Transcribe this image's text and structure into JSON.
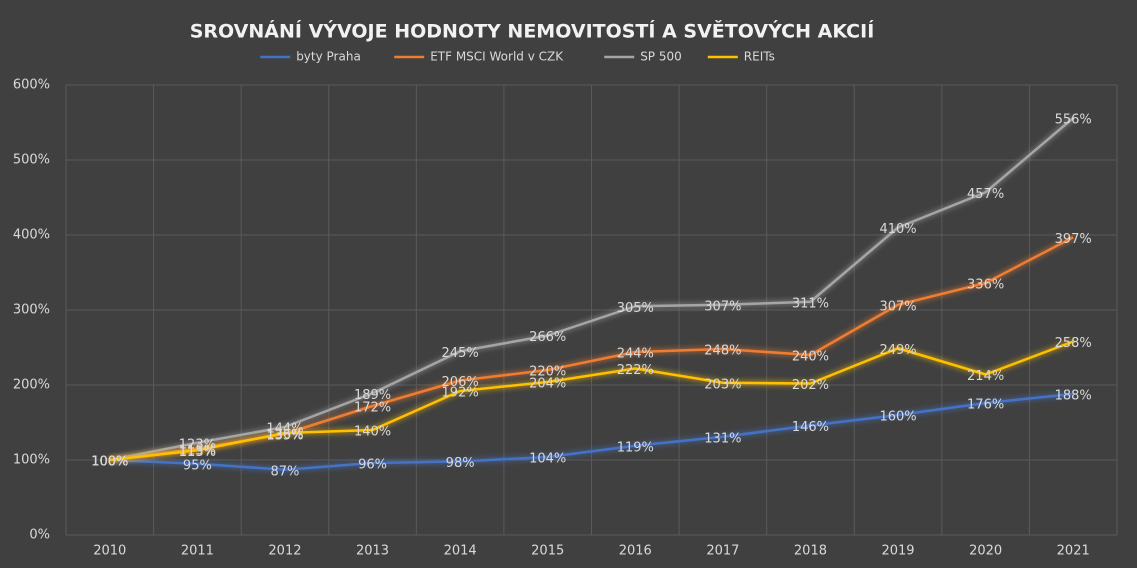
{
  "chart_data": {
    "type": "line",
    "title": "SROVNÁNÍ VÝVOJE HODNOTY NEMOVITOSTÍ A SVĚTOVÝCH AKCIÍ",
    "categories": [
      "2010",
      "2011",
      "2012",
      "2013",
      "2014",
      "2015",
      "2016",
      "2017",
      "2018",
      "2019",
      "2020",
      "2021"
    ],
    "series": [
      {
        "name": "byty Praha",
        "color": "#4472c4",
        "values": [
          100,
          95,
          87,
          96,
          98,
          104,
          119,
          131,
          146,
          160,
          176,
          188
        ],
        "value_labels": [
          "100%",
          "95%",
          "87%",
          "96%",
          "98%",
          "104%",
          "119%",
          "131%",
          "146%",
          "160%",
          "176%",
          "188%"
        ]
      },
      {
        "name": "ETF MSCI World v CZK",
        "color": "#ed7d31",
        "values": [
          100,
          115,
          135,
          172,
          206,
          220,
          244,
          248,
          240,
          307,
          336,
          397
        ],
        "value_labels": [
          "100%",
          "115%",
          "135%",
          "172%",
          "206%",
          "220%",
          "244%",
          "248%",
          "240%",
          "307%",
          "336%",
          "397%"
        ]
      },
      {
        "name": "SP 500",
        "color": "#a5a5a5",
        "values": [
          100,
          123,
          144,
          189,
          245,
          266,
          305,
          307,
          311,
          410,
          457,
          556
        ],
        "value_labels": [
          "100%",
          "123%",
          "144%",
          "189%",
          "245%",
          "266%",
          "305%",
          "307%",
          "311%",
          "410%",
          "457%",
          "556%"
        ]
      },
      {
        "name": "REITs",
        "color": "#ffc000",
        "values": [
          100,
          113,
          136,
          140,
          192,
          204,
          222,
          203,
          202,
          249,
          214,
          258
        ],
        "value_labels": [
          "100%",
          "113%",
          "136%",
          "140%",
          "192%",
          "204%",
          "222%",
          "203%",
          "202%",
          "249%",
          "214%",
          "258%"
        ]
      }
    ],
    "ylim": [
      0,
      600
    ],
    "yticks": [
      {
        "value": 0,
        "label": "0%"
      },
      {
        "value": 100,
        "label": "100%"
      },
      {
        "value": 200,
        "label": "200%"
      },
      {
        "value": 300,
        "label": "300%"
      },
      {
        "value": 400,
        "label": "400%"
      },
      {
        "value": 500,
        "label": "500%"
      },
      {
        "value": 600,
        "label": "600%"
      }
    ],
    "grid": true,
    "legend": "top"
  }
}
